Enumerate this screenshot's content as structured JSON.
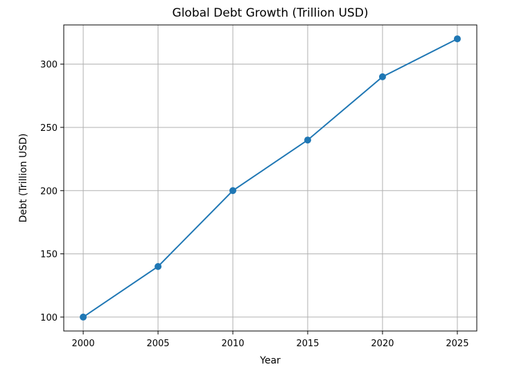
{
  "chart_data": {
    "type": "line",
    "title": "Global Debt Growth (Trillion USD)",
    "xlabel": "Year",
    "ylabel": "Debt (Trillion USD)",
    "x": [
      2000,
      2005,
      2010,
      2015,
      2020,
      2025
    ],
    "series": [
      {
        "values": [
          100,
          140,
          200,
          240,
          290,
          320
        ],
        "color": "#1f77b4",
        "marker": "circle"
      }
    ],
    "xticks": [
      "2000",
      "2005",
      "2010",
      "2015",
      "2020",
      "2025"
    ],
    "yticks": [
      "100",
      "150",
      "200",
      "250",
      "300"
    ],
    "xlim": [
      1998.7,
      2026.3
    ],
    "ylim": [
      89,
      331
    ],
    "grid": true
  }
}
